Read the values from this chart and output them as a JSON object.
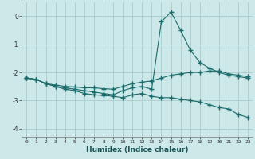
{
  "xlabel": "Humidex (Indice chaleur)",
  "background_color": "#cce8e8",
  "grid_color": "#aacccc",
  "line_color": "#1a6b6b",
  "xlim": [
    -0.5,
    23.5
  ],
  "ylim": [
    -4.3,
    0.5
  ],
  "yticks": [
    0,
    -1,
    -2,
    -3,
    -4
  ],
  "xticks": [
    0,
    1,
    2,
    3,
    4,
    5,
    6,
    7,
    8,
    9,
    10,
    11,
    12,
    13,
    14,
    15,
    16,
    17,
    18,
    19,
    20,
    21,
    22,
    23
  ],
  "curve1_x": [
    0,
    1,
    2,
    3,
    4,
    5,
    6,
    7,
    8,
    9,
    10,
    11,
    12,
    13,
    14,
    15,
    16,
    17,
    18,
    19,
    20,
    21,
    22,
    23
  ],
  "curve1_y": [
    -2.2,
    -2.25,
    -2.4,
    -2.45,
    -2.5,
    -2.52,
    -2.55,
    -2.55,
    -2.58,
    -2.6,
    -2.5,
    -2.4,
    -2.35,
    -2.3,
    -2.2,
    -2.1,
    -2.05,
    -2.0,
    -2.0,
    -1.95,
    -1.95,
    -2.05,
    -2.1,
    -2.15
  ],
  "curve2_x": [
    0,
    1,
    2,
    3,
    4,
    5,
    6,
    7,
    8,
    9,
    10,
    11,
    12,
    13,
    14,
    15,
    16,
    17,
    18,
    19,
    20,
    21,
    22,
    23
  ],
  "curve2_y": [
    -2.2,
    -2.25,
    -2.4,
    -2.5,
    -2.55,
    -2.6,
    -2.65,
    -2.7,
    -2.75,
    -2.8,
    -2.65,
    -2.55,
    -2.5,
    -2.6,
    -0.2,
    0.15,
    -0.5,
    -1.2,
    -1.65,
    -1.85,
    -2.0,
    -2.1,
    -2.15,
    -2.2
  ],
  "curve3_x": [
    0,
    1,
    2,
    3,
    4,
    5,
    6,
    7,
    8,
    9,
    10,
    11,
    12,
    13,
    14,
    15,
    16,
    17,
    18,
    19,
    20,
    21,
    22,
    23
  ],
  "curve3_y": [
    -2.2,
    -2.25,
    -2.4,
    -2.5,
    -2.6,
    -2.65,
    -2.75,
    -2.8,
    -2.82,
    -2.85,
    -2.9,
    -2.8,
    -2.75,
    -2.85,
    -2.9,
    -2.9,
    -2.95,
    -3.0,
    -3.05,
    -3.15,
    -3.25,
    -3.3,
    -3.5,
    -3.6
  ]
}
